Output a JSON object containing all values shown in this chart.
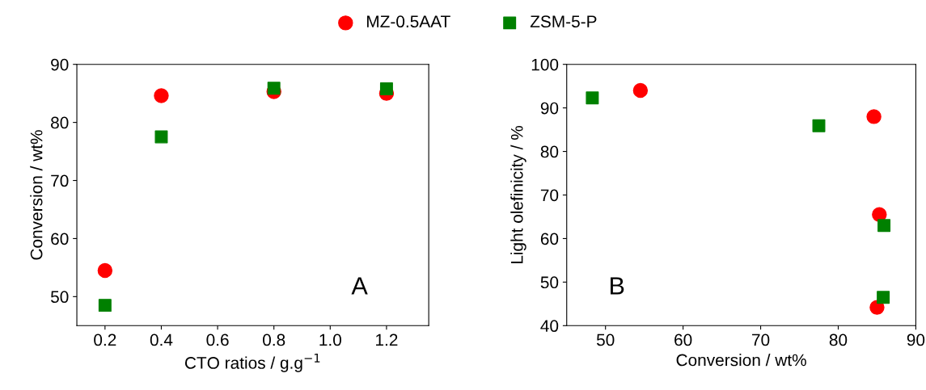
{
  "chart_data": [
    {
      "type": "scatter",
      "xlabel": "CTO ratios / g.g$^{−1}$",
      "ylabel": "Conversion / wt%",
      "annotations": [
        "A"
      ],
      "xlim": [
        0.1,
        1.35
      ],
      "ylim": [
        45,
        90
      ],
      "xticks": [
        0.2,
        0.4,
        0.6,
        0.8,
        {
          "value": 1.0,
          "label": "1.0"
        },
        1.2
      ],
      "yticks": [
        50,
        60,
        70,
        80,
        90
      ],
      "grid": false,
      "legend": "top",
      "series": [
        {
          "name": "MZ-0.5AAT",
          "color": "#ff0000",
          "marker": "circle",
          "x": [
            0.2,
            0.4,
            0.8,
            1.2
          ],
          "values": [
            54.5,
            84.6,
            85.3,
            85.0
          ]
        },
        {
          "name": "ZSM-5-P",
          "color": "#008000",
          "marker": "square",
          "x": [
            0.2,
            0.4,
            0.8,
            1.2
          ],
          "values": [
            48.5,
            77.5,
            85.9,
            85.8
          ]
        }
      ]
    },
    {
      "type": "scatter",
      "xlabel": "Conversion / wt%",
      "ylabel": "Light olefinicity / %",
      "annotations": [
        "B"
      ],
      "xlim": [
        45,
        90
      ],
      "ylim": [
        40,
        100
      ],
      "xticks": [
        50,
        60,
        70,
        80,
        90
      ],
      "yticks": [
        40,
        50,
        60,
        70,
        80,
        90,
        100
      ],
      "grid": false,
      "series": [
        {
          "color": "#ff0000",
          "marker": "circle",
          "x": [
            54.5,
            84.6,
            85.3,
            85.0
          ],
          "values": [
            94.0,
            88.0,
            65.5,
            44.2
          ]
        },
        {
          "color": "#008000",
          "marker": "square",
          "x": [
            48.3,
            77.5,
            85.9,
            85.8
          ],
          "values": [
            92.3,
            85.9,
            63.0,
            46.5
          ]
        }
      ]
    }
  ]
}
